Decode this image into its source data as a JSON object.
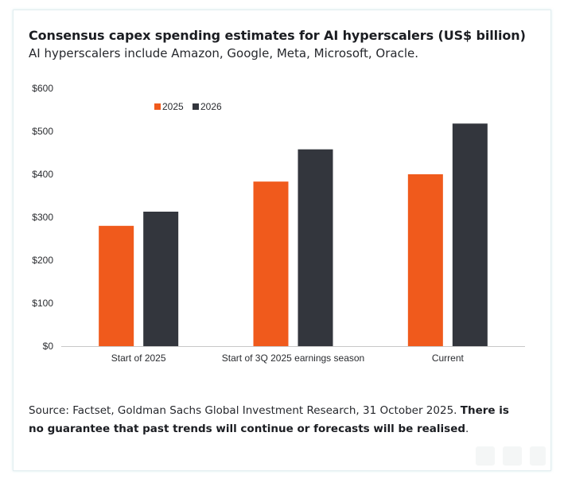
{
  "header": {
    "title": "Consensus capex spending estimates for AI hyperscalers (US$ billion)",
    "subtitle": "AI hyperscalers include Amazon, Google, Meta, Microsoft, Oracle."
  },
  "chart_data": {
    "type": "bar",
    "categories": [
      "Start of 2025",
      "Start of 3Q 2025 earnings season",
      "Current"
    ],
    "series": [
      {
        "name": "2025",
        "values": [
          280,
          383,
          400
        ],
        "color": "#f05a1c"
      },
      {
        "name": "2026",
        "values": [
          313,
          458,
          518
        ],
        "color": "#33363d"
      }
    ],
    "ylim": [
      0,
      600
    ],
    "yticks": [
      0,
      100,
      200,
      300,
      400,
      500,
      600
    ],
    "ytick_labels": [
      "$0",
      "$100",
      "$200",
      "$300",
      "$400",
      "$500",
      "$600"
    ],
    "xlabel": "",
    "ylabel": "",
    "grid": false,
    "legend_position": "top-left"
  },
  "footer": {
    "source_text": "Source: Factset, Goldman Sachs Global Investment Research, 31 October 2025. ",
    "disclaimer_bold": "There is no guarantee that past trends will continue or forecasts will be realised",
    "disclaimer_end": "."
  }
}
